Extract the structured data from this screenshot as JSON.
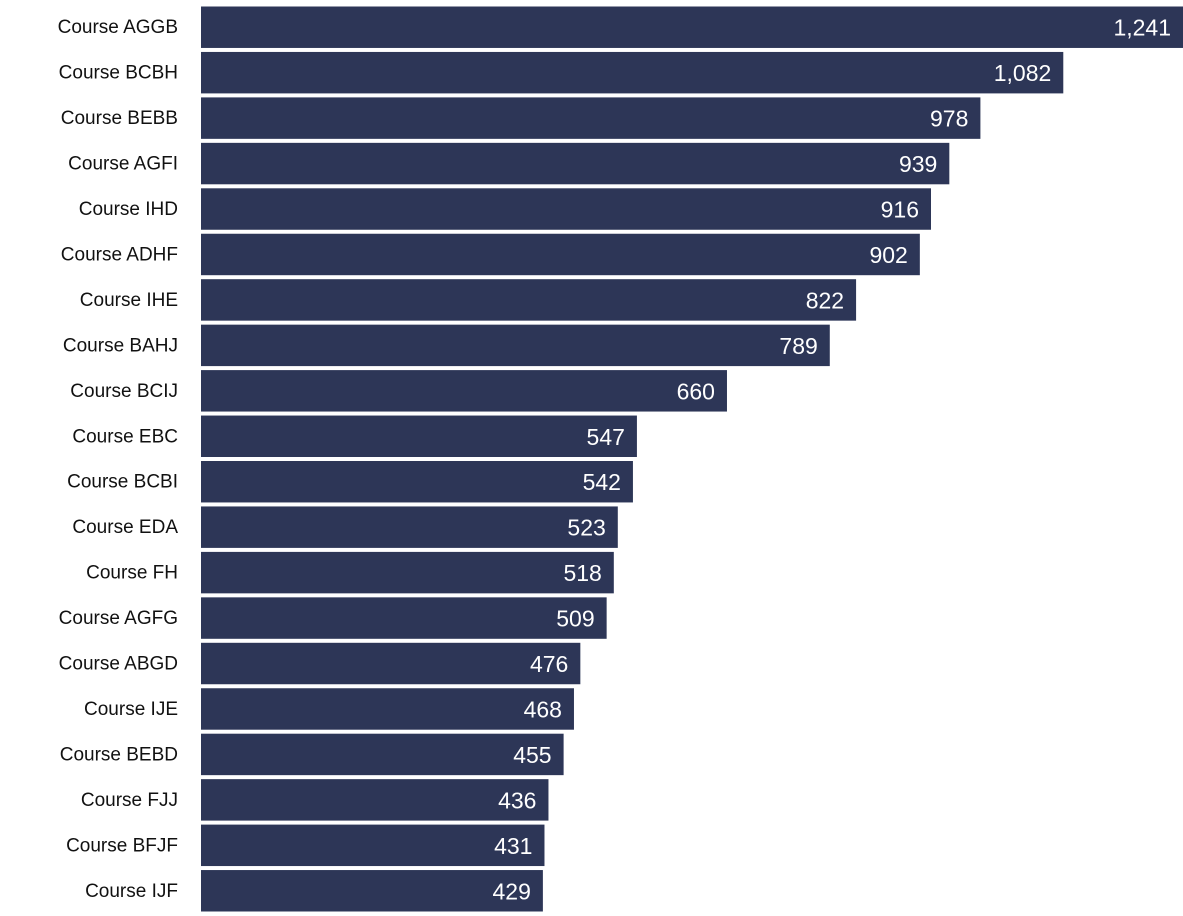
{
  "chart_data": {
    "type": "barh",
    "categories": [
      "Course AGGB",
      "Course BCBH",
      "Course BEBB",
      "Course AGFI",
      "Course IHD",
      "Course ADHF",
      "Course IHE",
      "Course BAHJ",
      "Course BCIJ",
      "Course EBC",
      "Course BCBI",
      "Course EDA",
      "Course FH",
      "Course AGFG",
      "Course ABGD",
      "Course IJE",
      "Course BEBD",
      "Course FJJ",
      "Course BFJF",
      "Course IJF"
    ],
    "values": [
      1241,
      1082,
      978,
      939,
      916,
      902,
      822,
      789,
      660,
      547,
      542,
      523,
      518,
      509,
      476,
      468,
      455,
      436,
      431,
      429
    ],
    "value_labels": [
      "1,241",
      "1,082",
      "978",
      "939",
      "916",
      "902",
      "822",
      "789",
      "660",
      "547",
      "542",
      "523",
      "518",
      "509",
      "476",
      "468",
      "455",
      "436",
      "431",
      "429"
    ],
    "color": "#2d3657",
    "xlim": [
      0,
      1241
    ]
  }
}
